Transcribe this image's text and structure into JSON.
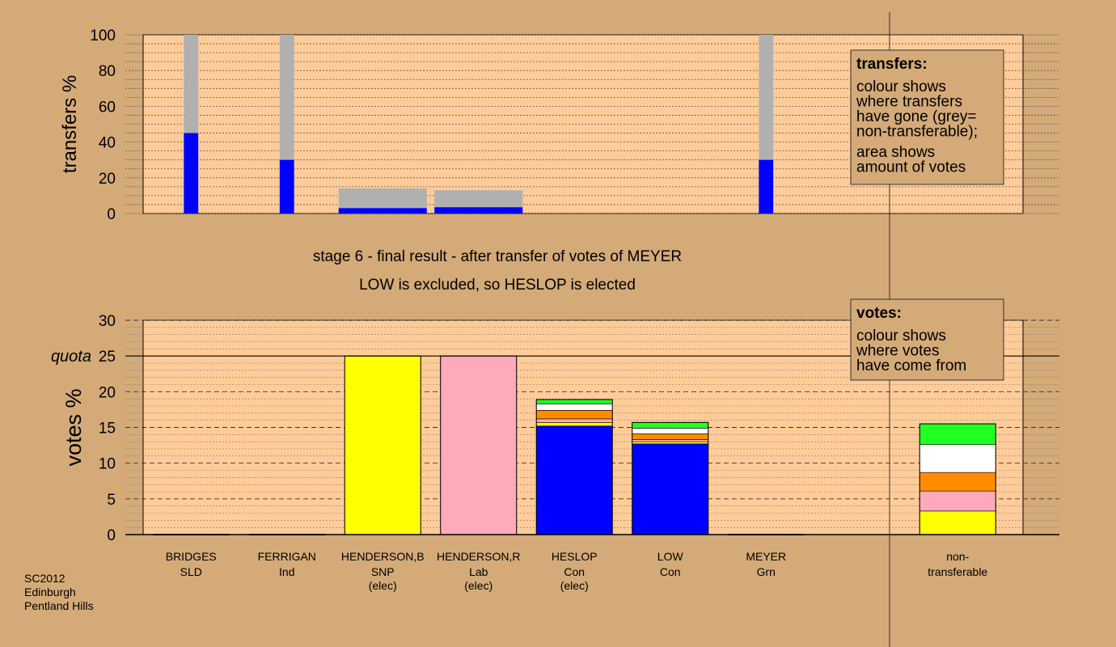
{
  "page": {
    "titles": [
      "stage 6 - final result - after transfer of votes of MEYER",
      "LOW is excluded, so HESLOP is elected"
    ],
    "footer": [
      "SC2012",
      "Edinburgh",
      "Pentland Hills"
    ]
  },
  "colors": {
    "background": "#d4aa78",
    "plot": "#ffcc99",
    "grey": "#b0b0b0",
    "Con": "#0000ff",
    "SNP": "#ffff00",
    "Lab": "#ffaabb",
    "LD": "#ff8c00",
    "Ind": "#ffffff",
    "Grn": "#22ff22"
  },
  "chart_data": [
    {
      "id": "transfers",
      "type": "bar",
      "ylabel": "transfers %",
      "ylim": [
        0,
        100
      ],
      "yticks": [
        0,
        20,
        40,
        60,
        80,
        100
      ],
      "bars": [
        {
          "col": 0.5,
          "width": 0.15,
          "total": 100,
          "transferred": 45
        },
        {
          "col": 1.5,
          "width": 0.15,
          "total": 100,
          "transferred": 30
        },
        {
          "col": 2.5,
          "width": 0.92,
          "total": 14,
          "transferred": 3
        },
        {
          "col": 3.5,
          "width": 0.92,
          "total": 13,
          "transferred": 3.5
        },
        {
          "col": 6.5,
          "width": 0.15,
          "total": 100,
          "transferred": 30
        }
      ],
      "legend": {
        "title": "transfers:",
        "lines": [
          "colour shows",
          "where transfers",
          "have gone (grey=",
          "non-transferable);"
        ],
        "lines2": [
          "area shows",
          "amount of votes"
        ]
      }
    },
    {
      "id": "votes",
      "type": "bar",
      "stacked": true,
      "ylabel": "votes %",
      "ylim": [
        0,
        30
      ],
      "yticks": [
        0,
        5,
        10,
        15,
        20,
        25,
        30
      ],
      "quota": 25,
      "quota_label": "quota",
      "categories": [
        {
          "name": "BRIDGES",
          "party": "SLD",
          "note": ""
        },
        {
          "name": "FERRIGAN",
          "party": "Ind",
          "note": ""
        },
        {
          "name": "HENDERSON,B",
          "party": "SNP",
          "note": "(elec)"
        },
        {
          "name": "HENDERSON,R",
          "party": "Lab",
          "note": "(elec)"
        },
        {
          "name": "HESLOP",
          "party": "Con",
          "note": "(elec)"
        },
        {
          "name": "LOW",
          "party": "Con",
          "note": ""
        },
        {
          "name": "MEYER",
          "party": "Grn",
          "note": ""
        },
        {
          "name": "",
          "party": "",
          "note": ""
        },
        {
          "name": "non-",
          "party": "transferable",
          "note": ""
        }
      ],
      "stacks": [
        [],
        [],
        [
          {
            "color": "SNP",
            "value": 25
          }
        ],
        [
          {
            "color": "Lab",
            "value": 25
          }
        ],
        [
          {
            "color": "Con",
            "value": 15.2
          },
          {
            "color": "SNP",
            "value": 0.5
          },
          {
            "color": "Lab",
            "value": 0.5
          },
          {
            "color": "LD",
            "value": 1.2
          },
          {
            "color": "Ind",
            "value": 0.9
          },
          {
            "color": "Grn",
            "value": 0.6
          }
        ],
        [
          {
            "color": "Con",
            "value": 12.7
          },
          {
            "color": "SNP",
            "value": 0.3
          },
          {
            "color": "Lab",
            "value": 0.3
          },
          {
            "color": "LD",
            "value": 0.8
          },
          {
            "color": "Ind",
            "value": 0.8
          },
          {
            "color": "Grn",
            "value": 0.8
          }
        ],
        [],
        [],
        [
          {
            "color": "SNP",
            "value": 3.3
          },
          {
            "color": "Lab",
            "value": 2.8
          },
          {
            "color": "LD",
            "value": 2.6
          },
          {
            "color": "Ind",
            "value": 3.9
          },
          {
            "color": "Grn",
            "value": 2.9
          }
        ]
      ],
      "legend": {
        "title": "votes:",
        "lines": [
          "colour shows",
          "where votes",
          "have come from"
        ]
      }
    }
  ]
}
